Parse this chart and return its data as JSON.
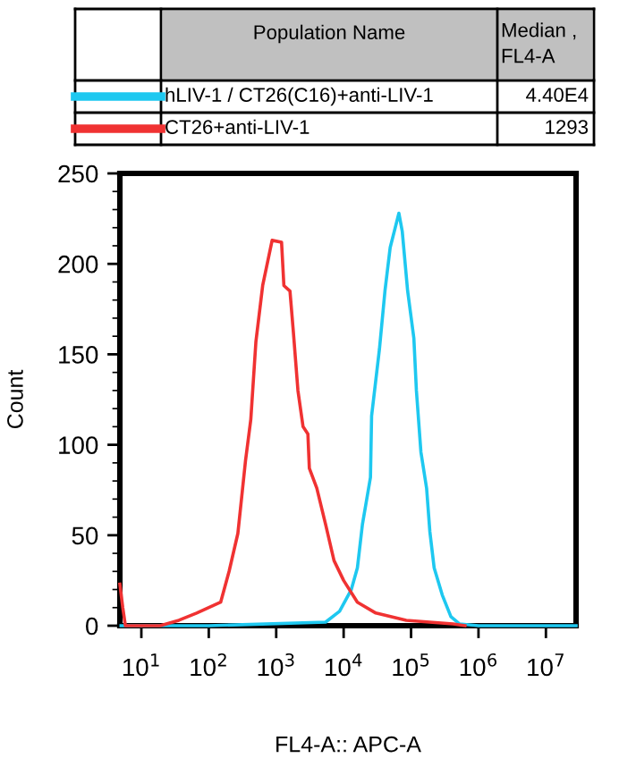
{
  "chart_data": {
    "type": "line",
    "xlabel": "FL4-A:: APC-A",
    "ylabel": "Count",
    "log": "x",
    "legend": "top",
    "legend_title": "Population Name",
    "annotations": [
      "Median ,\nFL4-A",
      "4.40E4",
      "1293"
    ],
    "series": [
      {
        "name": "hLIV-1 / CT26(C16)+anti-LIV-1",
        "color": "#1ec8f0",
        "x": [
          5,
          100,
          5400,
          8700,
          13000,
          16000,
          19000,
          25000,
          26000,
          34000,
          41000,
          49000,
          66000,
          74000,
          89000,
          110000,
          120000,
          140000,
          170000,
          190000,
          220000,
          290000,
          390000,
          520000,
          1000000,
          10000000,
          28000000
        ],
        "values": [
          0,
          0,
          2,
          8,
          20,
          32,
          56,
          82,
          116,
          153,
          185,
          209,
          228,
          218,
          185,
          159,
          130,
          96,
          76,
          52,
          32,
          17,
          5,
          1,
          0,
          0,
          0
        ]
      },
      {
        "name": "CT26+anti-LIV-1",
        "color": "#f03232",
        "x": [
          4.8,
          5.3,
          5.8,
          19,
          36,
          66,
          150,
          200,
          270,
          350,
          420,
          500,
          630,
          870,
          1200,
          1300,
          1600,
          1800,
          2100,
          2500,
          2950,
          3100,
          4000,
          5400,
          7200,
          10000,
          16000,
          30000,
          85000,
          420000,
          630000
        ],
        "values": [
          23,
          10,
          0,
          0,
          3,
          7,
          13,
          30,
          51,
          91,
          114,
          157,
          188,
          213,
          212,
          188,
          185,
          162,
          130,
          110,
          106,
          87,
          76,
          56,
          36,
          25,
          13,
          7,
          3,
          1,
          0
        ]
      }
    ],
    "xlim": [
      4.8,
      28000000
    ],
    "xticks": [
      {
        "value": 10,
        "label": "10$^{1}$"
      },
      {
        "value": 100,
        "label": "10$^{2}$"
      },
      {
        "value": 1000,
        "label": "10$^{3}$"
      },
      {
        "value": 10000,
        "label": "10$^{4}$"
      },
      {
        "value": 100000,
        "label": "10$^{5}$"
      },
      {
        "value": 1000000,
        "label": "10$^{6}$"
      },
      {
        "value": 10000000,
        "label": "10$^{7}$"
      }
    ],
    "ylim": [
      0,
      250
    ],
    "yticks": [
      0,
      50,
      100,
      150,
      200,
      250
    ],
    "grid": false
  }
}
